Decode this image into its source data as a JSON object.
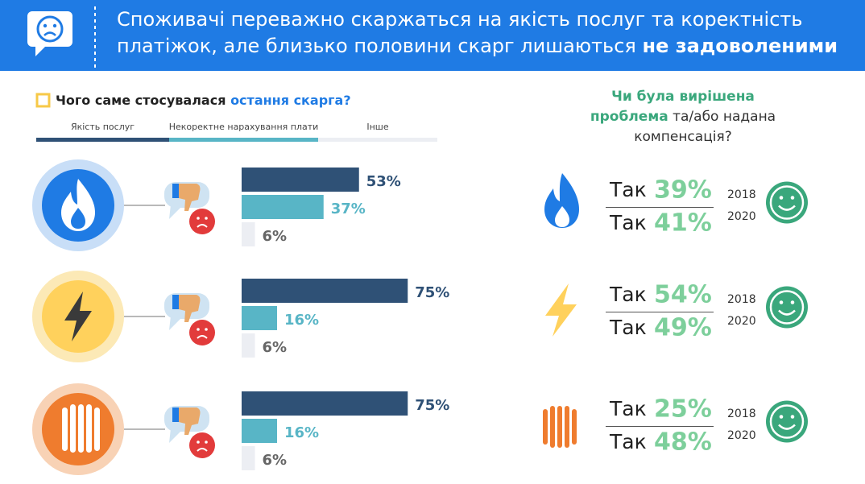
{
  "header": {
    "line1": "Споживачі переважно скаржаться на якість послуг та коректність",
    "line2": "платіжок, але близько половини скарг лишаються",
    "line2_bold": "не задоволеними"
  },
  "left_title": {
    "text": "Чого саме стосувалася",
    "highlight": "остання скарга?"
  },
  "legend": {
    "items": [
      {
        "name": "Якість послуг",
        "color": "#2f5176"
      },
      {
        "name": "Некоректне нарахування плати",
        "color": "#58b5c6"
      },
      {
        "name": "Інше",
        "color": "#eceef3"
      }
    ]
  },
  "chart_data": [
    {
      "type": "bar",
      "values": [
        53,
        37,
        6
      ],
      "value_labels": [
        "53%",
        "37%",
        "6%"
      ],
      "colors": [
        "#2f5176",
        "#58b5c6",
        "#eceef3"
      ]
    },
    {
      "type": "bar",
      "values": [
        75,
        16,
        6
      ],
      "value_labels": [
        "75%",
        "16%",
        "6%"
      ],
      "colors": [
        "#2f5176",
        "#58b5c6",
        "#eceef3"
      ]
    },
    {
      "type": "bar",
      "values": [
        75,
        16,
        6
      ],
      "value_labels": [
        "75%",
        "16%",
        "6%"
      ],
      "colors": [
        "#2f5176",
        "#58b5c6",
        "#eceef3"
      ]
    }
  ],
  "right_title": {
    "bold": [
      "Чи була вирішена",
      "проблема"
    ],
    "rest": [
      "та/або надана",
      "компенсація?"
    ]
  },
  "right_rows": [
    [
      {
        "answer": "Так",
        "value": "39%",
        "year": "2018"
      },
      {
        "answer": "Так",
        "value": "41%",
        "year": "2020"
      }
    ],
    [
      {
        "answer": "Так",
        "value": "54%",
        "year": "2018"
      },
      {
        "answer": "Так",
        "value": "49%",
        "year": "2020"
      }
    ],
    [
      {
        "answer": "Так",
        "value": "25%",
        "year": "2018"
      },
      {
        "answer": "Так",
        "value": "48%",
        "year": "2020"
      }
    ]
  ]
}
